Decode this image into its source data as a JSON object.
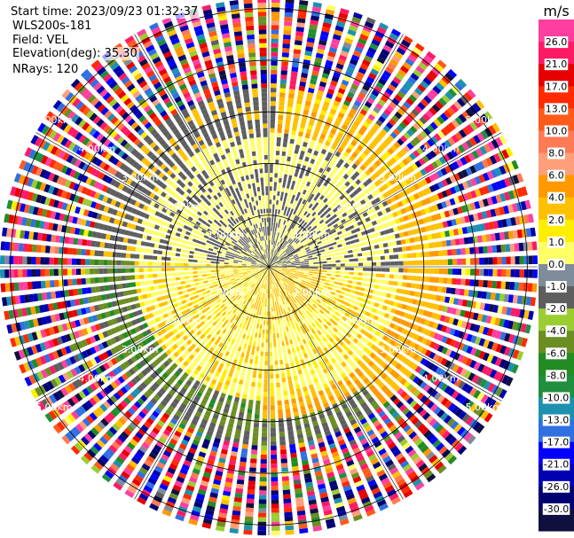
{
  "info": {
    "start_time": "Start time: 2023/09/23 01:32:37",
    "station": "WLS200s-181",
    "field": "Field: VEL",
    "elevation": "Elevation(deg): 35.30",
    "nrays": "NRays: 120"
  },
  "chart_data": {
    "type": "ppi",
    "title": "",
    "field": "VEL",
    "units": "m/s",
    "colorbar": {
      "label": "m/s",
      "ticks": [
        "26.0",
        "21.0",
        "17.0",
        "13.0",
        "10.0",
        "8.0",
        "6.0",
        "4.0",
        "2.0",
        "1.0",
        "0.0",
        "-1.0",
        "-2.0",
        "-4.0",
        "-6.0",
        "-8.0",
        "-10.0",
        "-13.0",
        "-17.0",
        "-21.0",
        "-26.0",
        "-30.0"
      ],
      "colors": [
        "#ff3fa0",
        "#ff1a66",
        "#e60000",
        "#ff2a00",
        "#ff5a1a",
        "#ff7a55",
        "#ff9f7a",
        "#ff9900",
        "#ffc000",
        "#ffee00",
        "#ffff66",
        "#7f8c9a",
        "#5e5e5e",
        "#9acd32",
        "#6b8e23",
        "#228b22",
        "#1f8f3f",
        "#1e90b0",
        "#3070e0",
        "#0000ff",
        "#0000b0",
        "#000070",
        "#101040"
      ]
    },
    "range_rings_km": [
      1.0,
      2.0,
      3.0,
      4.0,
      5.0
    ],
    "range_ring_labels": [
      "1.00km",
      "2.00km",
      "3.00km",
      "4.00km",
      "5.00km"
    ],
    "max_range_km": 5.2,
    "n_rays": 120,
    "structure": [
      {
        "range_km": [
          0.0,
          1.0
        ],
        "description": "near-zero velocities (gray), light green to west/north, yellow to east/south",
        "north_half": "1.0 to -2.0",
        "south_half": "0.0 to 2.0"
      },
      {
        "range_km": [
          1.0,
          2.8
        ],
        "north_half": "0.0 to -2.0 (gray / yellow-green)",
        "south_half": "1.0 to 2.0 (gray / yellow)"
      },
      {
        "range_km": [
          2.8,
          3.4
        ],
        "north_half": "-2.0 (yellow-green) west, 2.0 to 4.0 (yellow) east",
        "south_half": "2.0 to 4.0 (yellow) south-east, -4.0 to -6.0 (green) south-west"
      },
      {
        "range_km": [
          3.4,
          5.2
        ],
        "description": "noise: all colors randomly"
      }
    ]
  }
}
